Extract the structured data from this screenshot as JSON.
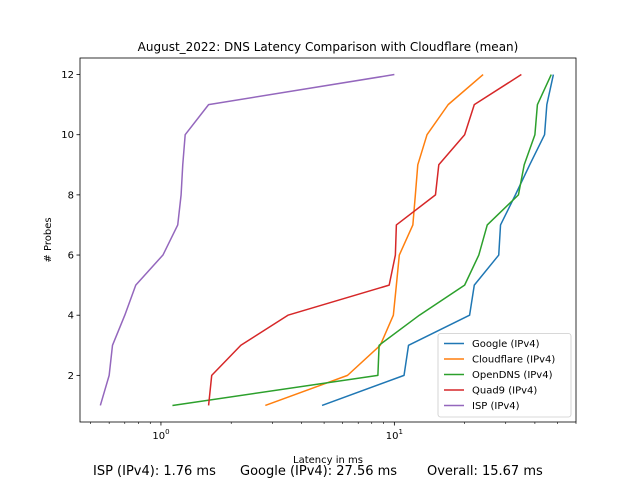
{
  "chart_data": {
    "type": "line",
    "title": "August_2022: DNS Latency Comparison with Cloudflare (mean)",
    "xlabel": "Latency in ms",
    "ylabel": "# Probes",
    "xscale": "log",
    "xlim": [
      0.45,
      60
    ],
    "ylim": [
      0.45,
      12.55
    ],
    "xticks": [
      {
        "value": 1,
        "label": "10^0"
      },
      {
        "value": 10,
        "label": "10^1"
      }
    ],
    "yticks": [
      2,
      4,
      6,
      8,
      10,
      12
    ],
    "legend_position": "lower-right",
    "series": [
      {
        "name": "Google (IPv4)",
        "color": "#1f77b4",
        "points": [
          [
            4.9,
            1
          ],
          [
            11,
            2
          ],
          [
            11.5,
            3
          ],
          [
            21,
            4
          ],
          [
            22,
            5
          ],
          [
            28,
            6
          ],
          [
            28.5,
            7
          ],
          [
            33,
            8
          ],
          [
            38,
            9
          ],
          [
            44,
            10
          ],
          [
            45,
            11
          ],
          [
            48,
            12
          ]
        ]
      },
      {
        "name": "Cloudflare (IPv4)",
        "color": "#ff7f0e",
        "points": [
          [
            2.8,
            1
          ],
          [
            6.3,
            2
          ],
          [
            8.7,
            3
          ],
          [
            9.9,
            4
          ],
          [
            10.2,
            5
          ],
          [
            10.5,
            6
          ],
          [
            12,
            7
          ],
          [
            12.3,
            8
          ],
          [
            12.6,
            9
          ],
          [
            13.8,
            10
          ],
          [
            17,
            11
          ],
          [
            24,
            12
          ]
        ]
      },
      {
        "name": "OpenDNS (IPv4)",
        "color": "#2ca02c",
        "points": [
          [
            1.12,
            1
          ],
          [
            8.5,
            2
          ],
          [
            8.6,
            3
          ],
          [
            12.8,
            4
          ],
          [
            20,
            5
          ],
          [
            23,
            6
          ],
          [
            25,
            7
          ],
          [
            34,
            8
          ],
          [
            36,
            9
          ],
          [
            40,
            10
          ],
          [
            41,
            11
          ],
          [
            47,
            12
          ]
        ]
      },
      {
        "name": "Quad9 (IPv4)",
        "color": "#d62728",
        "points": [
          [
            1.6,
            1
          ],
          [
            1.65,
            2
          ],
          [
            2.2,
            3
          ],
          [
            3.5,
            4
          ],
          [
            9.5,
            5
          ],
          [
            10.1,
            6
          ],
          [
            10.2,
            7
          ],
          [
            15,
            8
          ],
          [
            15.5,
            9
          ],
          [
            20,
            10
          ],
          [
            22,
            11
          ],
          [
            35,
            12
          ]
        ]
      },
      {
        "name": "ISP (IPv4)",
        "color": "#9467bd",
        "points": [
          [
            0.55,
            1
          ],
          [
            0.6,
            2
          ],
          [
            0.62,
            3
          ],
          [
            0.7,
            4
          ],
          [
            0.78,
            5
          ],
          [
            1.02,
            6
          ],
          [
            1.18,
            7
          ],
          [
            1.22,
            8
          ],
          [
            1.24,
            9
          ],
          [
            1.27,
            10
          ],
          [
            1.6,
            11
          ],
          [
            10,
            12
          ]
        ]
      }
    ]
  },
  "footer": {
    "isp": "ISP (IPv4): 1.76 ms",
    "google": "Google (IPv4): 27.56 ms",
    "overall": "Overall: 15.67 ms"
  }
}
